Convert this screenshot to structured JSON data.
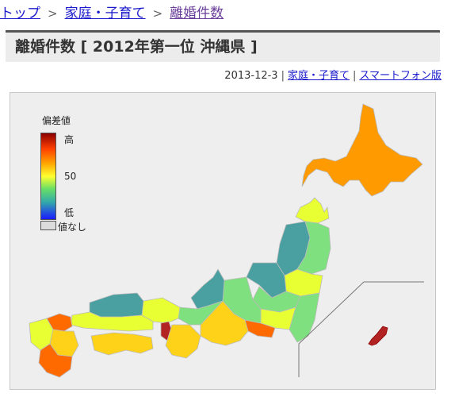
{
  "breadcrumb": {
    "items": [
      "トップ",
      "家庭・子育て",
      "離婚件数"
    ],
    "separator": ">"
  },
  "page_title": "離婚件数 [ 2012年第一位 沖縄県 ]",
  "meta": {
    "date": "2013-12-3",
    "category_link": "家庭・子育て",
    "smartphone_link": "スマートフォン版",
    "pipe": "|"
  },
  "legend": {
    "title": "偏差値",
    "high": "高",
    "mid": "50",
    "low": "低",
    "no_value": "値なし"
  },
  "colors": {
    "very_high": "#b22222",
    "high": "#ff6a00",
    "orange": "#ff9a00",
    "above": "#ffd21a",
    "yellow": "#e8ff33",
    "mid": "#7ee07e",
    "low": "#5ab4a0",
    "teal": "#4aa0a0",
    "no_value": "#dcdcdc"
  }
}
